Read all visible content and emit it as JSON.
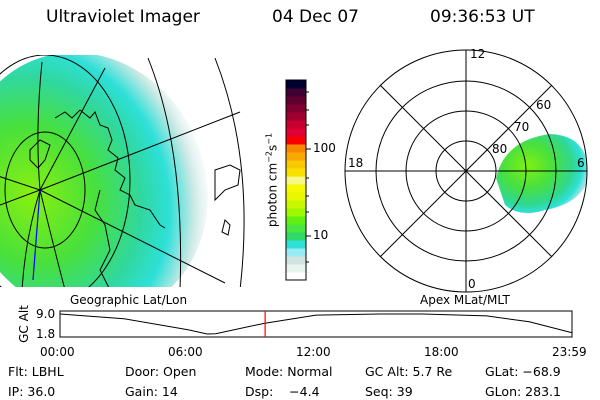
{
  "header": {
    "instrument": "Ultraviolet Imager",
    "date": "04 Dec 07",
    "time": "09:36:53 UT"
  },
  "geo_map": {
    "label": "Geographic Lat/Lon"
  },
  "polar_plot": {
    "label": "Apex MLat/MLT",
    "mlt_labels": {
      "top": "12",
      "bottom": "0",
      "left": "18",
      "right": "6"
    },
    "lat_labels": [
      "80",
      "70",
      "60"
    ]
  },
  "colorbar": {
    "unit_label": "photon cm",
    "unit_exp1": "−2",
    "unit_mid": "s",
    "unit_exp2": "−1",
    "tick_labels": [
      "10",
      "100"
    ],
    "scale": "log",
    "colors_bottom_to_top": [
      "#ffffff",
      "#e8f4ee",
      "#d2e4e2",
      "#98ecf4",
      "#2ee0d8",
      "#30d868",
      "#48e840",
      "#60f014",
      "#a0f800",
      "#c8f800",
      "#e8f800",
      "#f8f800",
      "#f8f888",
      "#f8e000",
      "#f8c800",
      "#f8a800",
      "#f88800",
      "#f80000",
      "#e00034",
      "#c80030",
      "#a00030",
      "#800030",
      "#600030",
      "#400030",
      "#000030"
    ]
  },
  "altitude_panel": {
    "ylabel": "GC Alt",
    "ytick_labels": [
      "9.0",
      "1.8"
    ],
    "xtick_labels": [
      "00:00",
      "06:00",
      "12:00",
      "18:00",
      "23:59"
    ],
    "current_time_hours": 9.615,
    "marker_color": "#ff0000",
    "series_hours": [
      0,
      3,
      6,
      6.9,
      7.3,
      9.6,
      12,
      15,
      17,
      20,
      22,
      23.98
    ],
    "series_alt_re": [
      9.0,
      7.3,
      3.3,
      1.8,
      1.9,
      5.7,
      8.6,
      9.0,
      9.0,
      8.3,
      6.2,
      2.3
    ]
  },
  "info": {
    "filter": "Flt: LBHL",
    "door": "Door: Open",
    "mode": "Mode: Normal",
    "gc_alt": "GC Alt: 5.7 Re",
    "glat": "GLat: −68.9",
    "ip": "IP: 36.0",
    "gain": "Gain: 14",
    "dsp": "Dsp:    −4.4",
    "seq": "Seq: 39",
    "glon": "GLon: 283.1"
  }
}
